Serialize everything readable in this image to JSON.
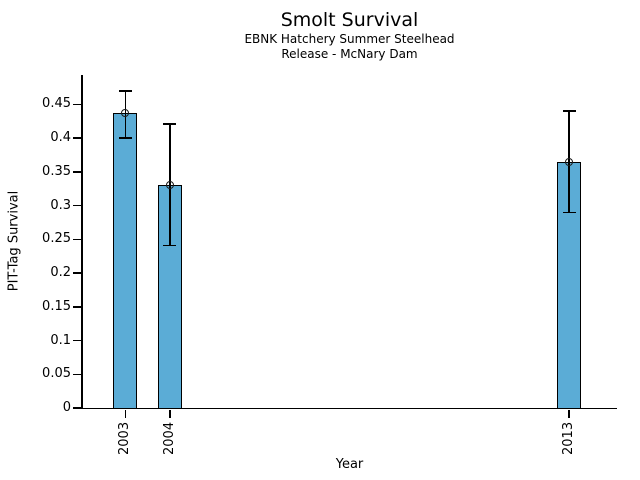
{
  "chart_data": {
    "type": "bar",
    "title": "Smolt Survival",
    "subtitle_lines": [
      "EBNK Hatchery Summer Steelhead",
      "Release - McNary Dam"
    ],
    "xlabel": "Year",
    "ylabel": "PIT-Tag Survival",
    "categories": [
      "2003",
      "2004",
      "2013"
    ],
    "x_numeric": [
      2003,
      2004,
      2013
    ],
    "series": [
      {
        "name": "PIT-Tag Survival",
        "values": [
          0.437,
          0.331,
          0.365
        ],
        "error_low": [
          0.4,
          0.241,
          0.29
        ],
        "error_high": [
          0.47,
          0.421,
          0.44
        ]
      }
    ],
    "bar_color": "#5bacd6",
    "bar_edge_color": "#000000",
    "error_bar_color": "#000000",
    "marker": "open-circle",
    "xlim": [
      2002.02,
      2014.08
    ],
    "ylim": [
      0,
      0.4937
    ],
    "yticks": [
      0,
      0.05,
      0.1,
      0.15,
      0.2,
      0.25,
      0.3,
      0.35,
      0.4,
      0.45
    ],
    "ytick_labels": [
      "0",
      "0.05",
      "0.1",
      "0.15",
      "0.2",
      "0.25",
      "0.3",
      "0.35",
      "0.4",
      "0.45"
    ],
    "grid": false,
    "legend": null
  }
}
